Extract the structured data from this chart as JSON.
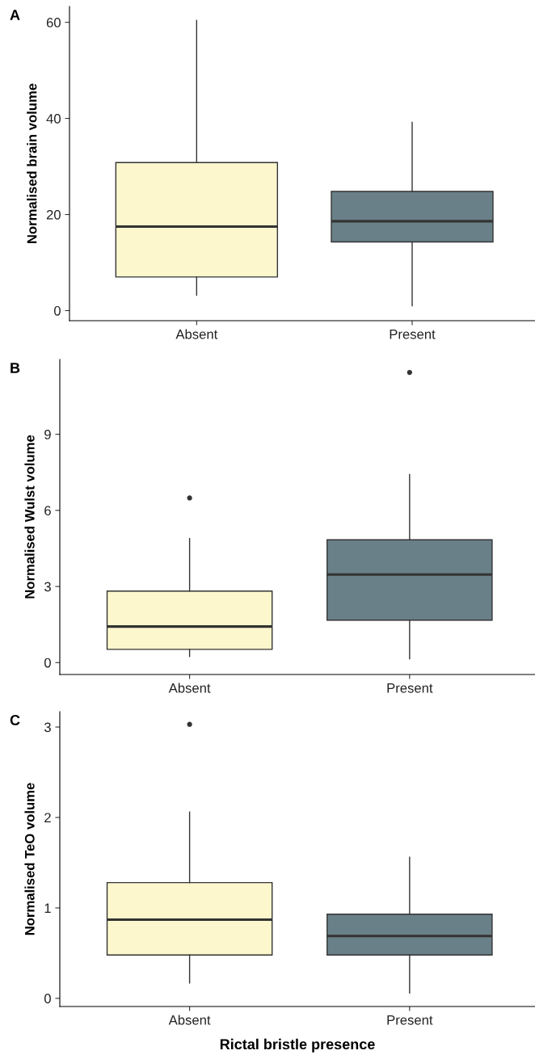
{
  "chart_data": [
    {
      "type": "box",
      "annotations": [
        "A"
      ],
      "ylabel": "Normalised brain volume",
      "categories": [
        "Absent",
        "Present"
      ],
      "colors": [
        "#fdf7cd",
        "#6a8089"
      ],
      "boxes": [
        {
          "low": 3.2,
          "q1": 7.0,
          "median": 17.5,
          "q3": 30.8,
          "high": 60.4
        },
        {
          "low": 1.0,
          "q1": 14.3,
          "median": 18.6,
          "q3": 24.8,
          "high": 39.2
        }
      ],
      "ylim": [
        -2.1,
        63.3
      ],
      "yticks": [
        0,
        20,
        40,
        60
      ],
      "grid": false
    },
    {
      "type": "box",
      "annotations": [
        "B"
      ],
      "ylabel": "Normalised Wulst volume",
      "categories": [
        "Absent",
        "Present"
      ],
      "colors": [
        "#fdf7cd",
        "#6a8089"
      ],
      "boxes": [
        {
          "low": 0.24,
          "q1": 0.52,
          "median": 1.42,
          "q3": 2.82,
          "high": 4.89,
          "outliers": [
            6.49
          ]
        },
        {
          "low": 0.15,
          "q1": 1.67,
          "median": 3.47,
          "q3": 4.84,
          "high": 7.41,
          "outliers": [
            11.44
          ]
        }
      ],
      "ylim": [
        -0.47,
        11.95
      ],
      "yticks": [
        0,
        3,
        6,
        9
      ],
      "grid": false
    },
    {
      "type": "box",
      "annotations": [
        "C"
      ],
      "ylabel": "Normalised TeO volume",
      "xlabel": "Rictal bristle presence",
      "categories": [
        "Absent",
        "Present"
      ],
      "colors": [
        "#fdf7cd",
        "#6a8089"
      ],
      "boxes": [
        {
          "low": 0.17,
          "q1": 0.48,
          "median": 0.87,
          "q3": 1.28,
          "high": 2.06,
          "outliers": [
            3.03
          ]
        },
        {
          "low": 0.06,
          "q1": 0.48,
          "median": 0.69,
          "q3": 0.93,
          "high": 1.56
        }
      ],
      "ylim": [
        -0.09,
        3.17
      ],
      "yticks": [
        0,
        1,
        2,
        3
      ],
      "grid": false
    }
  ]
}
